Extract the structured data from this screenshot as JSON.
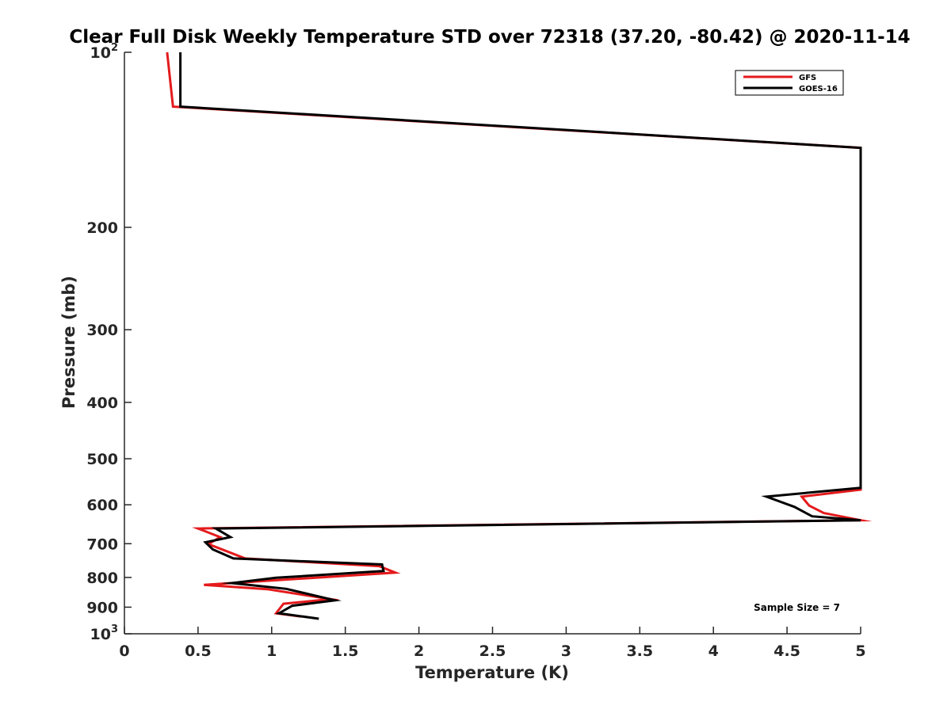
{
  "chart_data": {
    "type": "line",
    "title": "Clear Full Disk Weekly Temperature STD over 72318 (37.20, -80.42) @ 2020-11-14",
    "xlabel": "Temperature (K)",
    "ylabel": "Pressure (mb)",
    "xlim": [
      0,
      5
    ],
    "ylim": [
      100,
      1000
    ],
    "y_scale": "log",
    "y_reversed": true,
    "x_ticks": [
      "0",
      "0.5",
      "1",
      "1.5",
      "2",
      "2.5",
      "3",
      "3.5",
      "4",
      "4.5",
      "5"
    ],
    "y_ticks": [
      {
        "value": 100,
        "base": "10",
        "exp": "2"
      },
      {
        "value": 200,
        "label": "200"
      },
      {
        "value": 300,
        "label": "300"
      },
      {
        "value": 400,
        "label": "400"
      },
      {
        "value": 500,
        "label": "500"
      },
      {
        "value": 600,
        "label": "600"
      },
      {
        "value": 700,
        "label": "700"
      },
      {
        "value": 800,
        "label": "800"
      },
      {
        "value": 900,
        "label": "900"
      },
      {
        "value": 1000,
        "base": "10",
        "exp": "3"
      }
    ],
    "grid": false,
    "legend_position": "top-right",
    "series": [
      {
        "name": "GFS",
        "color": "#e41a1c",
        "points": [
          [
            0.29,
            100
          ],
          [
            0.33,
            124
          ],
          [
            5.0,
            146
          ],
          [
            5.0,
            565
          ],
          [
            4.6,
            581
          ],
          [
            4.65,
            602
          ],
          [
            4.75,
            620
          ],
          [
            5.0,
            638
          ],
          [
            0.5,
            659
          ],
          [
            0.65,
            682
          ],
          [
            0.57,
            701
          ],
          [
            0.82,
            742
          ],
          [
            1.73,
            765
          ],
          [
            1.84,
            785
          ],
          [
            0.54,
            824
          ],
          [
            0.97,
            838
          ],
          [
            1.4,
            872
          ],
          [
            1.08,
            888
          ],
          [
            1.03,
            922
          ],
          [
            1.2,
            934
          ]
        ]
      },
      {
        "name": "GOES-16",
        "color": "#000000",
        "points": [
          [
            0.38,
            100
          ],
          [
            0.38,
            124
          ],
          [
            5.0,
            146
          ],
          [
            5.0,
            561
          ],
          [
            4.36,
            581
          ],
          [
            4.55,
            605
          ],
          [
            4.67,
            628
          ],
          [
            5.0,
            638
          ],
          [
            0.62,
            659
          ],
          [
            0.72,
            682
          ],
          [
            0.55,
            696
          ],
          [
            0.6,
            716
          ],
          [
            0.74,
            742
          ],
          [
            1.75,
            760
          ],
          [
            1.76,
            780
          ],
          [
            1.03,
            801
          ],
          [
            0.73,
            818
          ],
          [
            1.1,
            837
          ],
          [
            1.43,
            876
          ],
          [
            1.14,
            895
          ],
          [
            1.05,
            922
          ],
          [
            1.32,
            942
          ]
        ]
      }
    ],
    "annotation": "Sample Size = 7"
  }
}
